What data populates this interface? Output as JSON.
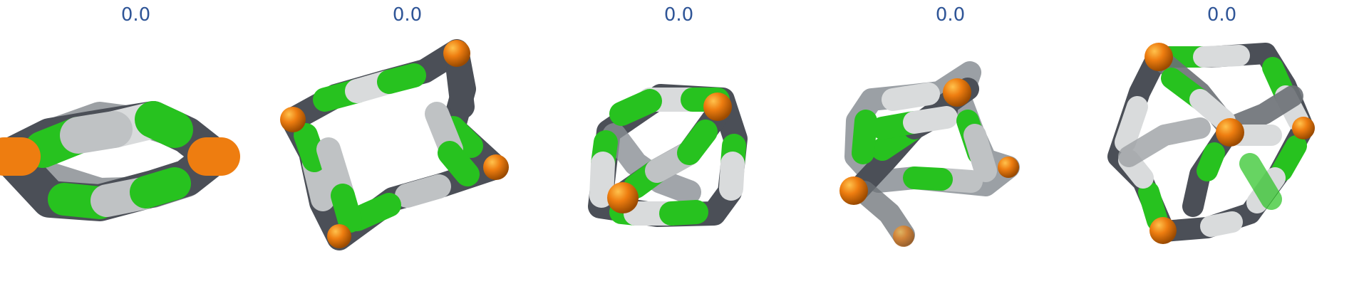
{
  "panels": [
    {
      "score": "0.0"
    },
    {
      "score": "0.0"
    },
    {
      "score": "0.0"
    },
    {
      "score": "0.0"
    },
    {
      "score": "0.0"
    }
  ],
  "colors": {
    "score_text": "#2f5597",
    "carbon": "#4b4f57",
    "carbon_light": "#bfc2c4",
    "silicon_or_metal": "#ee7d10",
    "chlorine_green": "#27c21f"
  }
}
